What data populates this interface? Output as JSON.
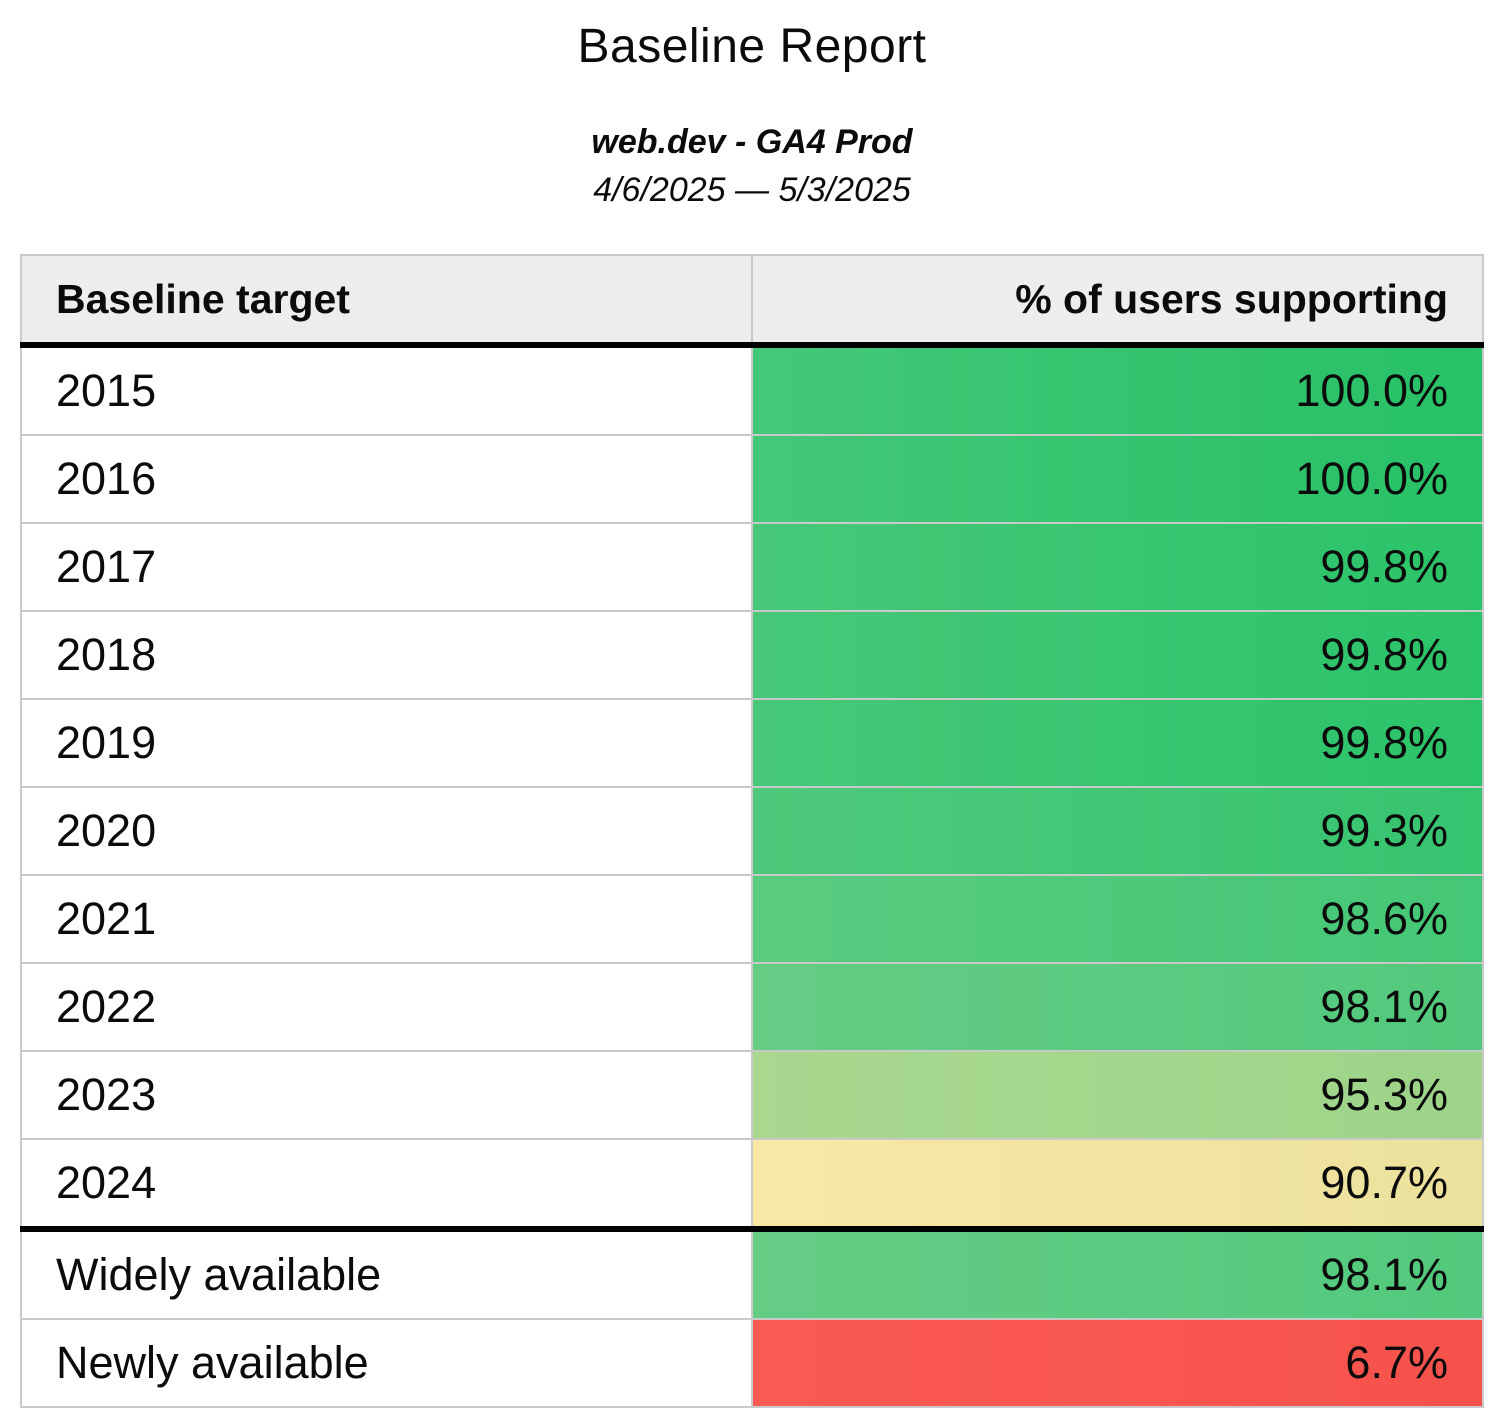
{
  "report": {
    "title": "Baseline Report",
    "property": "web.dev - GA4 Prod",
    "date_range": "4/6/2025 — 5/3/2025"
  },
  "table": {
    "columns": [
      {
        "label": "Baseline target",
        "align": "left"
      },
      {
        "label": "% of users supporting",
        "align": "right"
      }
    ],
    "rows": [
      {
        "target": "2015",
        "value": "100.0%",
        "color_left": "#43c877",
        "color_right": "#27c167"
      },
      {
        "target": "2016",
        "value": "100.0%",
        "color_left": "#43c877",
        "color_right": "#27c167"
      },
      {
        "target": "2017",
        "value": "99.8%",
        "color_left": "#46c878",
        "color_right": "#2bc369"
      },
      {
        "target": "2018",
        "value": "99.8%",
        "color_left": "#46c878",
        "color_right": "#2bc369"
      },
      {
        "target": "2019",
        "value": "99.8%",
        "color_left": "#46c878",
        "color_right": "#2bc369"
      },
      {
        "target": "2020",
        "value": "99.3%",
        "color_left": "#4ec97b",
        "color_right": "#36c46f"
      },
      {
        "target": "2021",
        "value": "98.6%",
        "color_left": "#59cb7f",
        "color_right": "#44c776"
      },
      {
        "target": "2022",
        "value": "98.1%",
        "color_left": "#65cc84",
        "color_right": "#52c97c"
      },
      {
        "target": "2023",
        "value": "95.3%",
        "color_left": "#a9d88f",
        "color_right": "#9dd489"
      },
      {
        "target": "2024",
        "value": "90.7%",
        "color_left": "#f8e8a6",
        "color_right": "#ebe19c"
      },
      {
        "target": "Widely available",
        "value": "98.1%",
        "color_left": "#65cc84",
        "color_right": "#52c97c"
      },
      {
        "target": "Newly available",
        "value": "6.7%",
        "color_left": "#fb5a53",
        "color_right": "#f5524c"
      }
    ]
  },
  "chart_data": {
    "type": "table",
    "title": "Baseline Report",
    "subtitle": "web.dev - GA4 Prod",
    "date_range": "4/6/2025 — 5/3/2025",
    "columns": [
      "Baseline target",
      "% of users supporting"
    ],
    "categories": [
      "2015",
      "2016",
      "2017",
      "2018",
      "2019",
      "2020",
      "2021",
      "2022",
      "2023",
      "2024",
      "Widely available",
      "Newly available"
    ],
    "values": [
      100.0,
      100.0,
      99.8,
      99.8,
      99.8,
      99.3,
      98.6,
      98.1,
      95.3,
      90.7,
      98.1,
      6.7
    ],
    "value_unit": "%",
    "color_scale": "green (high support) through yellow (~90%) to red (low support)"
  }
}
